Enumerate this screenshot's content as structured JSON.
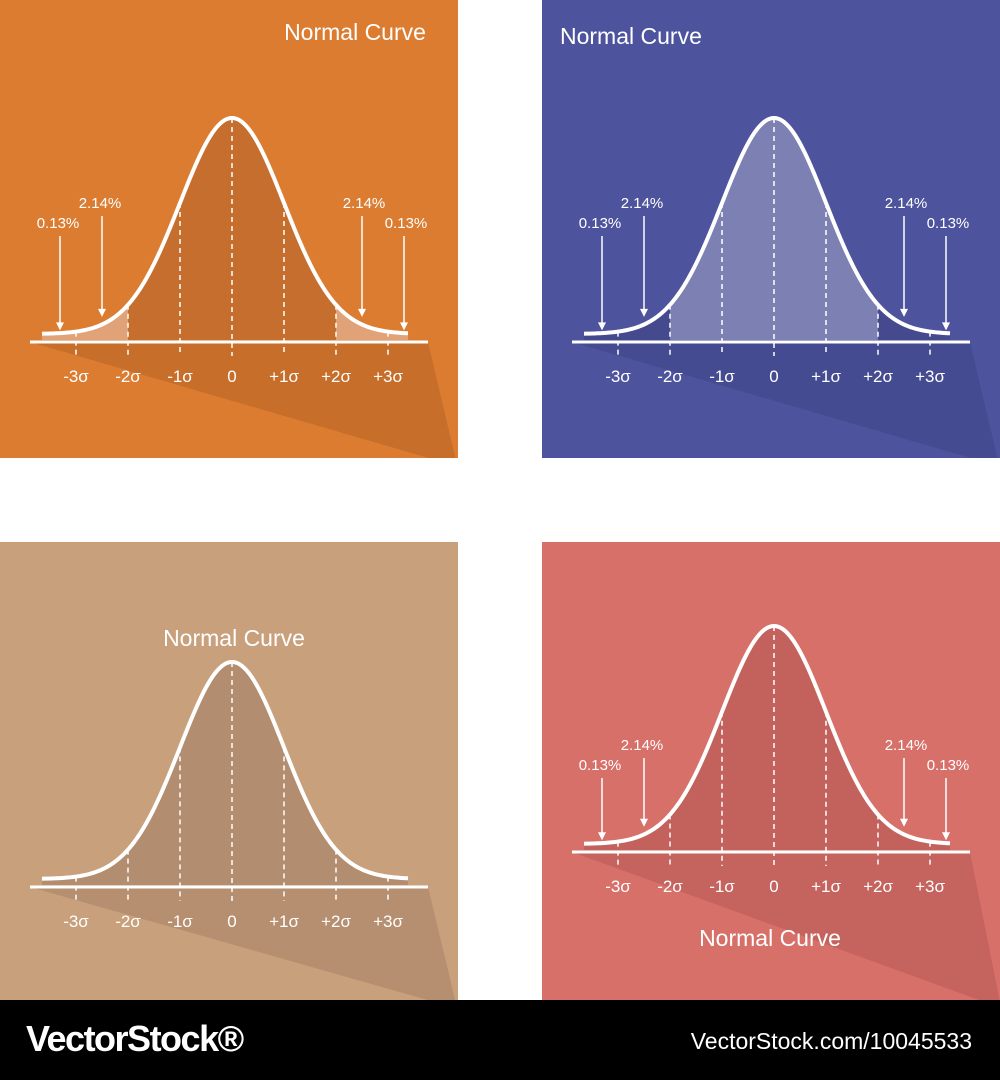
{
  "panels": [
    {
      "id": "orange",
      "title": "Normal Curve",
      "background": "#DB7C31",
      "shadow": "#C36D2A",
      "fill": "#C66E2D",
      "tail_fill": "#E0A276",
      "sigma_labels": [
        "-3σ",
        "-2σ",
        "-1σ",
        "0",
        "+1σ",
        "+2σ",
        "+3σ"
      ],
      "callouts": [
        "0.13%",
        "2.14%",
        "2.14%",
        "0.13%"
      ]
    },
    {
      "id": "blue",
      "title": "Normal Curve",
      "background": "#4E539D",
      "shadow": "#454A8F",
      "fill": "#7C80B3",
      "tail_fill": "#454A8F",
      "sigma_labels": [
        "-3σ",
        "-2σ",
        "-1σ",
        "0",
        "+1σ",
        "+2σ",
        "+3σ"
      ],
      "callouts": [
        "0.13%",
        "2.14%",
        "2.14%",
        "0.13%"
      ]
    },
    {
      "id": "tan",
      "title": "Normal Curve",
      "background": "#C8A07B",
      "shadow": "#B38D6F",
      "fill": "#B38D6F",
      "tail_fill": "#B38D6F",
      "sigma_labels": [
        "-3σ",
        "-2σ",
        "-1σ",
        "0",
        "+1σ",
        "+2σ",
        "+3σ"
      ],
      "callouts": []
    },
    {
      "id": "red",
      "title": "Normal Curve",
      "background": "#D8706A",
      "shadow": "#C3625D",
      "fill": "#C3625D",
      "tail_fill": "#C3625D",
      "sigma_labels": [
        "-3σ",
        "-2σ",
        "-1σ",
        "0",
        "+1σ",
        "+2σ",
        "+3σ"
      ],
      "callouts": [
        "0.13%",
        "2.14%",
        "2.14%",
        "0.13%"
      ]
    }
  ],
  "footer": {
    "brand": "VectorStock®",
    "stock_id": "VectorStock.com/10045533"
  }
}
